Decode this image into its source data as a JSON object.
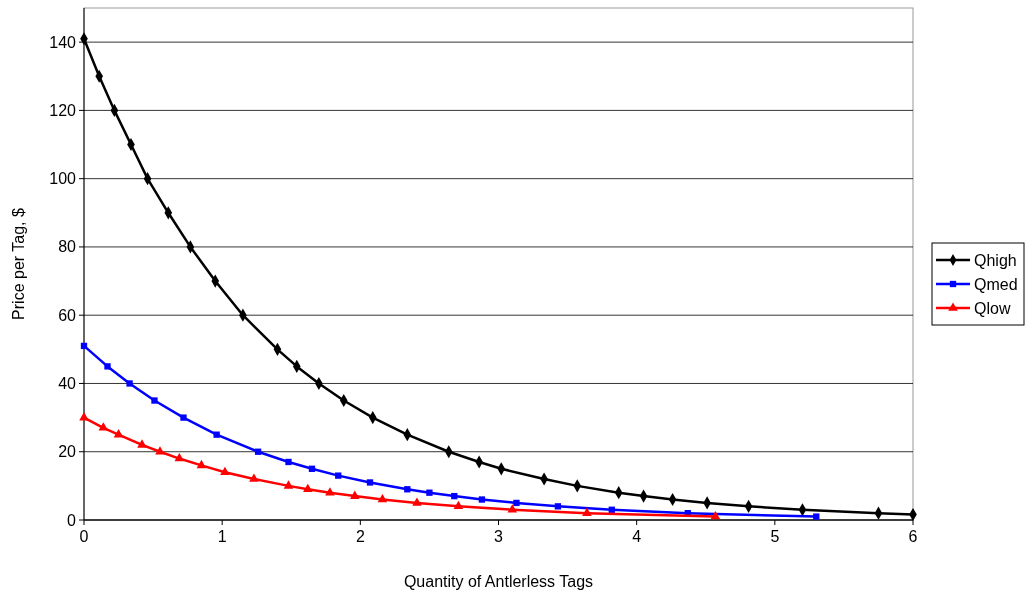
{
  "chart_data": {
    "type": "line",
    "xlabel": "Quantity of Antlerless Tags",
    "ylabel": "Price per Tag, $",
    "xlim": [
      0,
      6
    ],
    "xticks": [
      0,
      1,
      2,
      3,
      4,
      5,
      6
    ],
    "ylim": [
      0,
      150
    ],
    "yticks": [
      0,
      20,
      40,
      60,
      80,
      100,
      120,
      140
    ],
    "grid": "y",
    "legend": "right",
    "series": [
      {
        "name": "Qhigh",
        "color": "#000000",
        "marker": "diamond",
        "x": [
          0,
          0.11,
          0.22,
          0.34,
          0.46,
          0.61,
          0.77,
          0.95,
          1.15,
          1.4,
          1.54,
          1.7,
          1.88,
          2.09,
          2.34,
          2.64,
          2.86,
          3.02,
          3.33,
          3.57,
          3.87,
          4.05,
          4.26,
          4.51,
          4.81,
          5.2,
          5.75,
          6
        ],
        "values": [
          141,
          130,
          120,
          110,
          100,
          90,
          80,
          70,
          60,
          50,
          45,
          40,
          35,
          30,
          25,
          20,
          17,
          15,
          12,
          10,
          8,
          7,
          6,
          5,
          4,
          3,
          2,
          1.6
        ]
      },
      {
        "name": "Qmed",
        "color": "#0000ff",
        "marker": "square",
        "x": [
          0,
          0.17,
          0.33,
          0.51,
          0.72,
          0.96,
          1.26,
          1.48,
          1.65,
          1.84,
          2.07,
          2.34,
          2.5,
          2.68,
          2.88,
          3.13,
          3.43,
          3.82,
          4.37,
          5.3
        ],
        "values": [
          51,
          45,
          40,
          35,
          30,
          25,
          20,
          17,
          15,
          13,
          11,
          9,
          8,
          7,
          6,
          5,
          4,
          3,
          2,
          1
        ]
      },
      {
        "name": "Qlow",
        "color": "#ff0000",
        "marker": "triangle",
        "x": [
          0,
          0.14,
          0.25,
          0.42,
          0.55,
          0.69,
          0.85,
          1.02,
          1.23,
          1.48,
          1.62,
          1.78,
          1.96,
          2.16,
          2.41,
          2.71,
          3.1,
          3.64,
          4.57
        ],
        "values": [
          30,
          27,
          25,
          22,
          20,
          18,
          16,
          14,
          12,
          10,
          9,
          8,
          7,
          6,
          5,
          4,
          3,
          2,
          1
        ]
      }
    ]
  }
}
